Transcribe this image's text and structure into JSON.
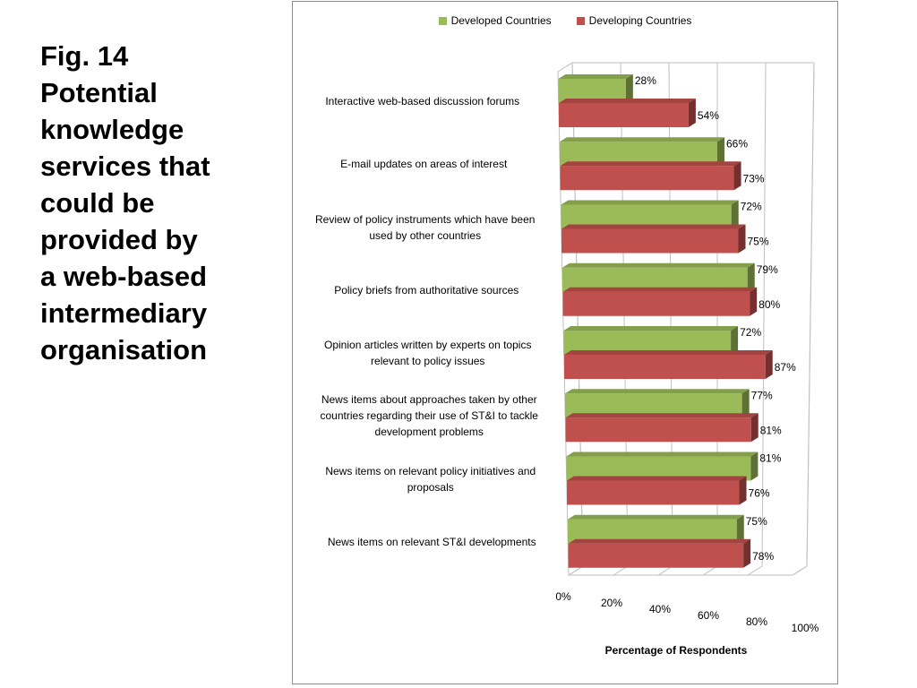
{
  "slide": {
    "title_lines": [
      "Fig. 14",
      "Potential",
      "knowledge",
      "services that",
      "could be",
      "provided by",
      "a web-based",
      "intermediary",
      "organisation"
    ]
  },
  "chart_data": {
    "type": "bar",
    "orientation": "horizontal",
    "style": "3d-clustered",
    "categories": [
      [
        "Interactive web-based discussion forums"
      ],
      [
        "E-mail updates on areas of interest"
      ],
      [
        "Review of policy instruments which have been",
        "used by other countries"
      ],
      [
        "Policy briefs from authoritative sources"
      ],
      [
        "Opinion articles written by experts on topics",
        "relevant to policy issues"
      ],
      [
        "News items about approaches taken by other",
        "countries regarding their use of ST&I to tackle",
        "development problems"
      ],
      [
        "News items on relevant policy initiatives and",
        "proposals"
      ],
      [
        "News items on relevant ST&I developments"
      ]
    ],
    "series": [
      {
        "name": "Developed Countries",
        "color": "#9bbb59",
        "values": [
          28,
          66,
          72,
          79,
          72,
          77,
          81,
          75
        ],
        "labels": [
          "28%",
          "66%",
          "72%",
          "79%",
          "72%",
          "77%",
          "81%",
          "75%"
        ]
      },
      {
        "name": "Developing Countries",
        "color": "#c0504d",
        "values": [
          54,
          73,
          75,
          80,
          87,
          81,
          76,
          78
        ],
        "labels": [
          "54%",
          "73%",
          "75%",
          "80%",
          "87%",
          "81%",
          "76%",
          "78%"
        ]
      }
    ],
    "xlabel": "Percentage of Respondents",
    "xlim": [
      0,
      100
    ],
    "xticks": [
      "0%",
      "20%",
      "40%",
      "60%",
      "80%",
      "100%"
    ],
    "legend_position": "top",
    "grid": true
  }
}
